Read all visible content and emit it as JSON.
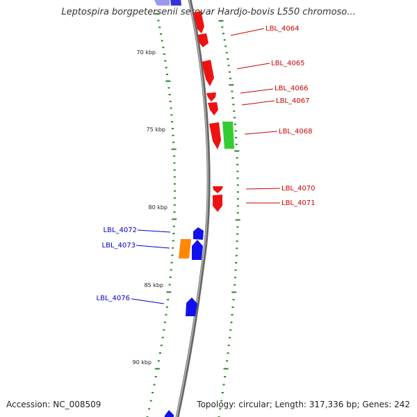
{
  "title": "Leptospira borgpetersenii serovar Hardjo-bovis L550 chromoso...",
  "footer": {
    "accession": "Accession: NC_008509",
    "summary": "Topology: circular; Length: 317,336 bp; Genes: 242"
  },
  "colors": {
    "forward": "#ee1111",
    "reverse": "#1111ee",
    "green": "#33cc33",
    "orange": "#ff8800",
    "backbone": "#888888",
    "tick": "#228822",
    "forward_label": "#cc0000",
    "reverse_label": "#0000cc"
  },
  "scale_labels": [
    "70 kbp",
    "75 kbp",
    "80 kbp",
    "85 kbp",
    "90 kbp"
  ],
  "genes": [
    {
      "id": "LBL_4064",
      "strand": "forward"
    },
    {
      "id": "LBL_4065",
      "strand": "forward"
    },
    {
      "id": "LBL_4066",
      "strand": "forward"
    },
    {
      "id": "LBL_4067",
      "strand": "forward"
    },
    {
      "id": "LBL_4068",
      "strand": "forward"
    },
    {
      "id": "LBL_4070",
      "strand": "forward"
    },
    {
      "id": "LBL_4071",
      "strand": "forward"
    },
    {
      "id": "LBL_4072",
      "strand": "reverse"
    },
    {
      "id": "LBL_4073",
      "strand": "reverse"
    },
    {
      "id": "LBL_4076",
      "strand": "reverse"
    }
  ]
}
